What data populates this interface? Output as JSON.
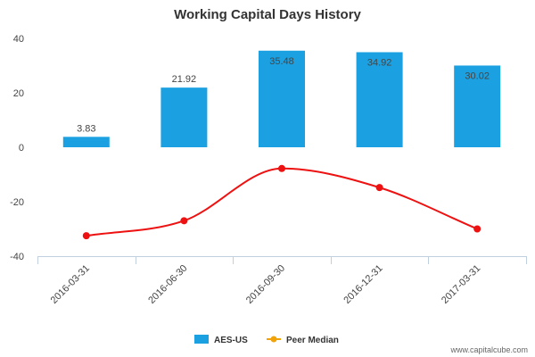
{
  "chart_data": {
    "type": "bar",
    "title": "Working Capital Days History",
    "categories": [
      "2016-03-31",
      "2016-06-30",
      "2016-09-30",
      "2016-12-31",
      "2017-03-31"
    ],
    "series": [
      {
        "name": "AES-US",
        "type": "bar",
        "values": [
          3.83,
          21.92,
          35.48,
          34.92,
          30.02
        ],
        "data_labels": [
          "3.83",
          "21.92",
          "35.48",
          "34.92",
          "30.02"
        ],
        "color": "#1ba1e2"
      },
      {
        "name": "Peer Median",
        "type": "line",
        "values": [
          -32.5,
          -27.0,
          -7.8,
          -14.8,
          -30.0
        ],
        "color": "#ee1111",
        "legend_color": "#f0a30a"
      }
    ],
    "yticks": [
      "40",
      "20",
      "0",
      "-20",
      "-40"
    ],
    "ytick_values": [
      40,
      20,
      0,
      -20,
      -40
    ],
    "ylim": [
      -40,
      40
    ],
    "xlabel": "",
    "ylabel": "",
    "grid": false,
    "legend_position": "bottom-center"
  },
  "watermark": "www.capitalcube.com"
}
